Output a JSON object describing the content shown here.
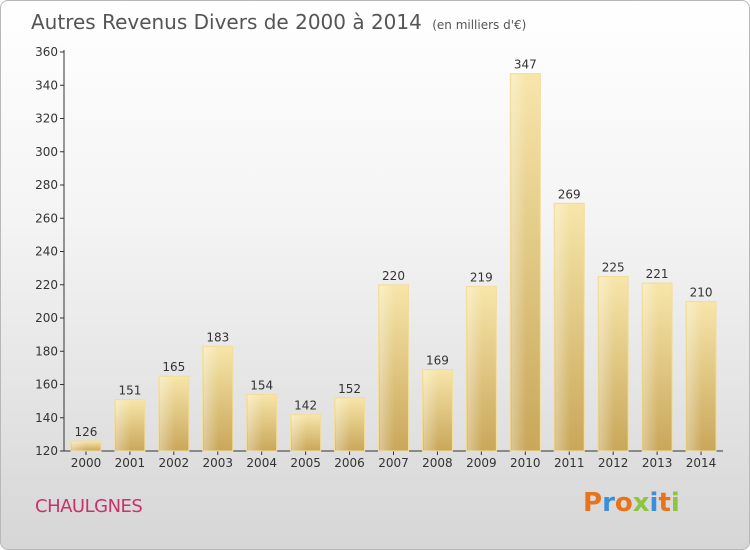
{
  "header": {
    "title": "Autres Revenus Divers de 2000 à 2014",
    "subtitle": "(en milliers d'€)"
  },
  "footer": {
    "commune": "CHAULGNES",
    "logo_text": "Proxiti"
  },
  "colors": {
    "bar": "#e9cc7e",
    "bar_light": "#f6e2a2",
    "bar_dark": "#cdaa5a",
    "commune": "#c8326a",
    "logo_letters": [
      "#e8731a",
      "#3b8fd9",
      "#e8731a",
      "#8cc63e",
      "#3b8fd9",
      "#e8731a",
      "#8cc63e"
    ]
  },
  "chart_data": {
    "type": "bar",
    "title": "Autres Revenus Divers de 2000 à 2014",
    "subtitle": "(en milliers d'€)",
    "categories": [
      "2000",
      "2001",
      "2002",
      "2003",
      "2004",
      "2005",
      "2006",
      "2007",
      "2008",
      "2009",
      "2010",
      "2011",
      "2012",
      "2013",
      "2014"
    ],
    "values": [
      126,
      151,
      165,
      183,
      154,
      142,
      152,
      220,
      169,
      219,
      347,
      269,
      225,
      221,
      210
    ],
    "ylim": [
      120,
      360
    ],
    "yticks": [
      120,
      140,
      160,
      180,
      200,
      220,
      240,
      260,
      280,
      300,
      320,
      340,
      360
    ],
    "grid": false,
    "legend": "none"
  }
}
